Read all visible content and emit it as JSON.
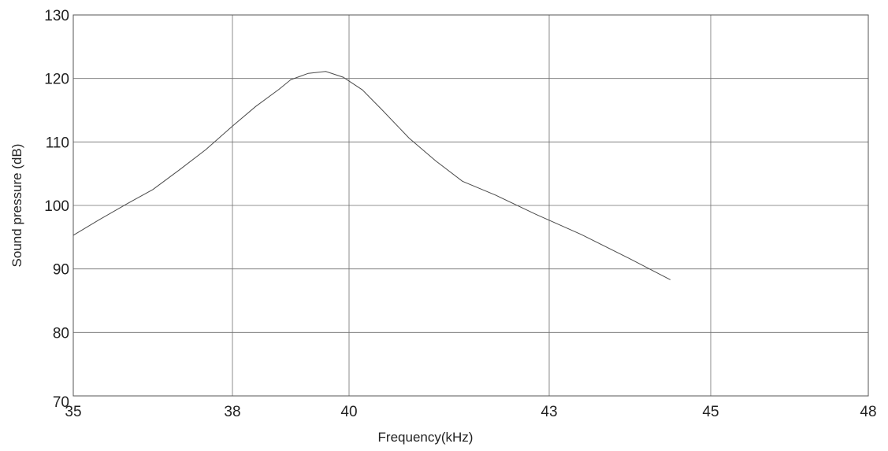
{
  "chart_data": {
    "type": "line",
    "title": "",
    "xlabel": "Frequency(kHz)",
    "ylabel": "Sound pressure (dB)",
    "x_ticks": [
      "35",
      "38",
      "40",
      "43",
      "45",
      "48"
    ],
    "y_ticks": [
      "70",
      "80",
      "90",
      "100",
      "110",
      "120",
      "130"
    ],
    "ylim": [
      70,
      130
    ],
    "grid": true,
    "series": [
      {
        "color": "#4a4a4a",
        "x": [
          35,
          35.5,
          36,
          36.5,
          37,
          37.5,
          38,
          38.4,
          38.8,
          39,
          39.3,
          39.6,
          39.9,
          40.2,
          40.5,
          40.9,
          41.3,
          41.7,
          42.2,
          42.8,
          43.4,
          44.0,
          44.5
        ],
        "y": [
          95.3,
          97.8,
          100.2,
          102.5,
          105.6,
          108.8,
          112.5,
          115.6,
          118.3,
          119.8,
          120.8,
          121.1,
          120.2,
          118.2,
          115.0,
          110.6,
          107.0,
          103.8,
          101.6,
          98.6,
          95.4,
          91.6,
          88.3
        ]
      }
    ]
  }
}
